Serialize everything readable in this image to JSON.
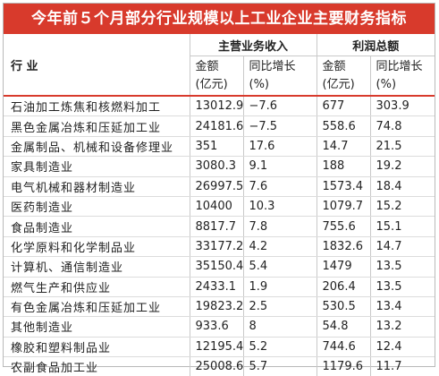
{
  "title": "今年前５个月部分行业规模以上工业企业主要财务指标",
  "header": {
    "industry": "行 业",
    "revenue_group": "主营业务收入",
    "profit_group": "利润总额",
    "amount_line1": "金额",
    "amount_line2": "(亿元)",
    "growth_line1": "同比增长",
    "growth_line2": "(%)"
  },
  "rows": [
    {
      "name": "石油加工炼焦和核燃料加工",
      "rev": "13012.9",
      "rev_g": "−7.6",
      "profit": "677",
      "profit_g": "303.9"
    },
    {
      "name": "黑色金属冶炼和压延加工业",
      "rev": "24181.6",
      "rev_g": "−7.5",
      "profit": "558.6",
      "profit_g": "74.8"
    },
    {
      "name": "金属制品、机械和设备修理业",
      "rev": "351",
      "rev_g": "17.6",
      "profit": "14.7",
      "profit_g": "21.5"
    },
    {
      "name": "家具制造业",
      "rev": "3080.3",
      "rev_g": "9.1",
      "profit": "188",
      "profit_g": "19.2"
    },
    {
      "name": "电气机械和器材制造业",
      "rev": "26997.5",
      "rev_g": "7.6",
      "profit": "1573.4",
      "profit_g": "18.4"
    },
    {
      "name": "医药制造业",
      "rev": "10400",
      "rev_g": "10.3",
      "profit": "1079.7",
      "profit_g": "15.2"
    },
    {
      "name": "食品制造业",
      "rev": "8817.7",
      "rev_g": "7.8",
      "profit": "755.6",
      "profit_g": "15.1"
    },
    {
      "name": "化学原料和化学制品业",
      "rev": "33177.2",
      "rev_g": "4.2",
      "profit": "1832.6",
      "profit_g": "14.7"
    },
    {
      "name": "计算机、通信制造业",
      "rev": "35150.4",
      "rev_g": "5.4",
      "profit": "1479",
      "profit_g": "13.5"
    },
    {
      "name": "燃气生产和供应业",
      "rev": "2433.1",
      "rev_g": "1.9",
      "profit": "206.4",
      "profit_g": "13.5"
    },
    {
      "name": "有色金属冶炼和压延加工业",
      "rev": "19823.2",
      "rev_g": "2.5",
      "profit": "530.5",
      "profit_g": "13.4"
    },
    {
      "name": "其他制造业",
      "rev": "933.6",
      "rev_g": "8",
      "profit": "54.8",
      "profit_g": "13.2"
    },
    {
      "name": "橡胶和塑料制品业",
      "rev": "12195.4",
      "rev_g": "5.2",
      "profit": "744.6",
      "profit_g": "12.4"
    },
    {
      "name": "农副食品加工业",
      "rev": "25008.6",
      "rev_g": "5.7",
      "profit": "1179.6",
      "profit_g": "11.7"
    }
  ],
  "colors": {
    "title_bg": "#d83a2c",
    "title_text": "#ffffff",
    "rule": "#d83a2c"
  }
}
